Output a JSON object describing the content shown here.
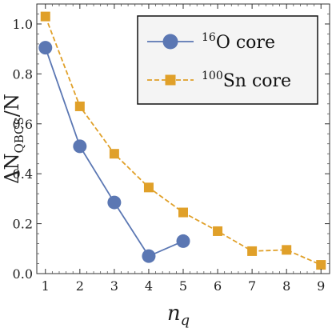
{
  "chart_data": {
    "type": "line",
    "x_label": "n",
    "x_label_sub": "q",
    "y_label_main": "ΔN",
    "y_label_sub": "QBCS",
    "y_label_tail": "/N",
    "xlim": [
      0.75,
      9.25
    ],
    "ylim": [
      0,
      1.08
    ],
    "x_ticks": [
      "1",
      "2",
      "3",
      "4",
      "5",
      "6",
      "7",
      "8",
      "9"
    ],
    "y_ticks": [
      "0.0",
      "0.2",
      "0.4",
      "0.6",
      "0.8",
      "1.0"
    ],
    "legend_position": "top-right",
    "series": [
      {
        "name_sup": "16",
        "name_text": "O core",
        "color": "#5b77b3",
        "marker": "circle",
        "line": "solid",
        "x": [
          1,
          2,
          3,
          4,
          5
        ],
        "y": [
          0.905,
          0.51,
          0.285,
          0.07,
          0.13
        ]
      },
      {
        "name_sup": "100",
        "name_text": "Sn core",
        "color": "#e0a029",
        "marker": "square",
        "line": "dashed",
        "x": [
          1,
          2,
          3,
          4,
          5,
          6,
          7,
          8,
          9
        ],
        "y": [
          1.03,
          0.67,
          0.48,
          0.345,
          0.245,
          0.17,
          0.09,
          0.095,
          0.035
        ]
      }
    ]
  }
}
